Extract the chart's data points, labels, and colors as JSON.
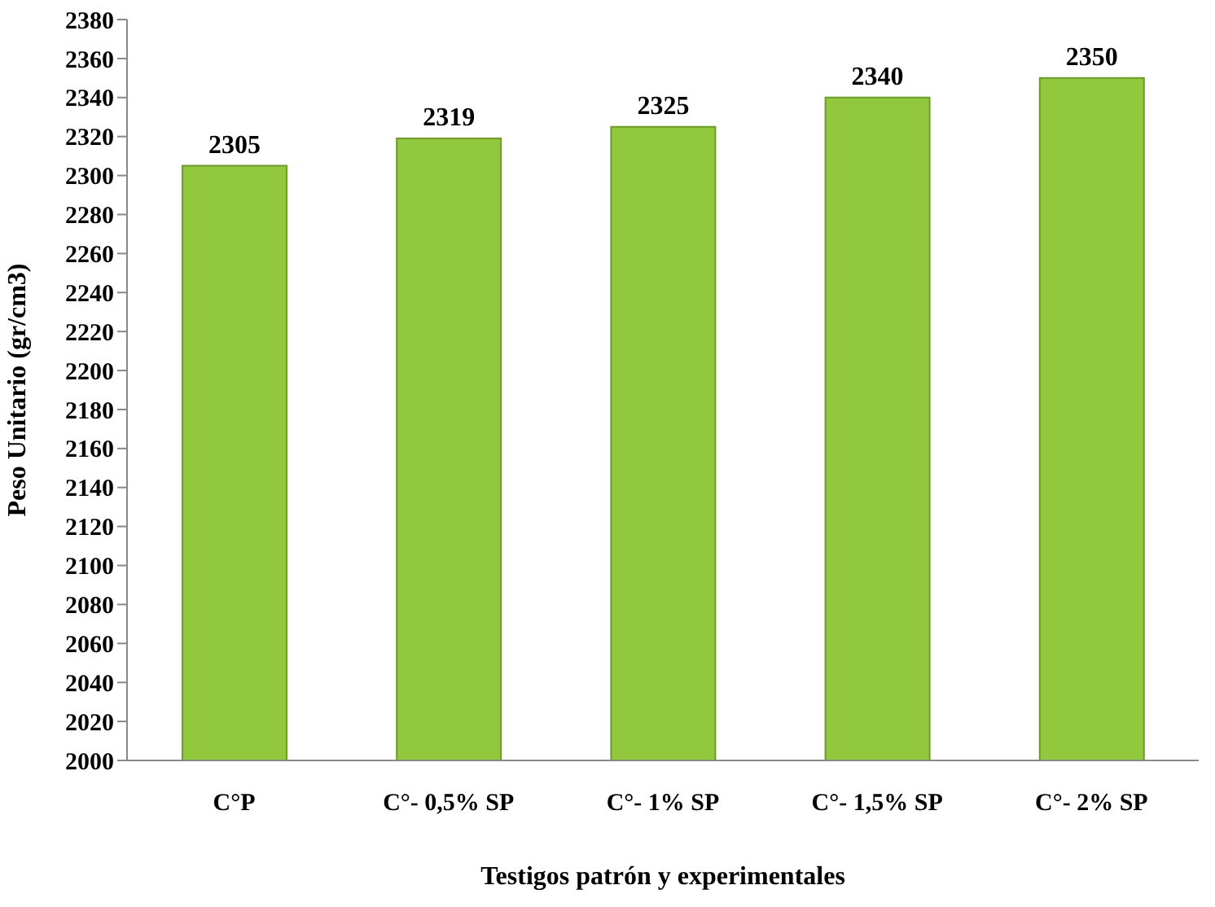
{
  "chart_data": {
    "type": "bar",
    "xlabel": "Testigos patrón y experimentales",
    "ylabel": "Peso Unitario (gr/cm3)",
    "categories": [
      "C°P",
      "C°- 0,5% SP",
      "C°- 1% SP",
      "C°- 1,5% SP",
      "C°- 2% SP"
    ],
    "values": [
      2305,
      2319,
      2325,
      2340,
      2350
    ],
    "color": "#92c83e",
    "ylim": [
      2000,
      2380
    ],
    "yticks": [
      2000,
      2020,
      2040,
      2060,
      2080,
      2100,
      2120,
      2140,
      2160,
      2180,
      2200,
      2220,
      2240,
      2260,
      2280,
      2300,
      2320,
      2340,
      2360,
      2380
    ],
    "grid": false,
    "data_labels": true
  }
}
